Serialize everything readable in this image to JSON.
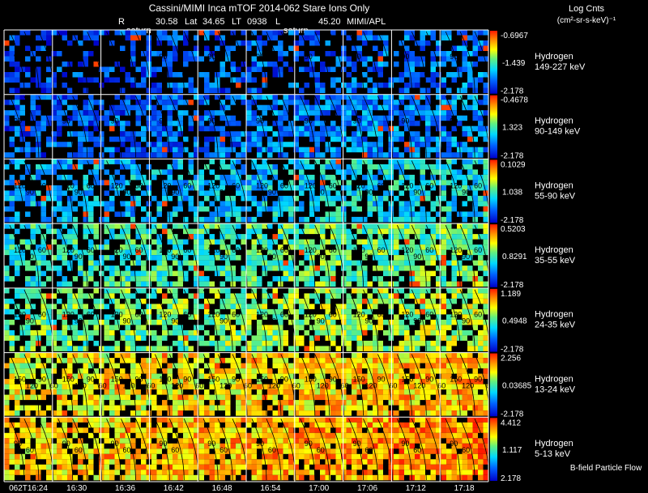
{
  "header": {
    "title": "Cassini/MIMI Inca mTOF  2014-062   Stare   Ions Only",
    "r_label": "R",
    "r_value": "30.58",
    "lat_label": "Lat",
    "lat_value": "34.65",
    "lt_label": "LT",
    "lt_value": "0938",
    "l_label": "L",
    "l_value": "45.20",
    "source": "MIMI/APL",
    "marker_1": "saturn",
    "marker_2": "saturn"
  },
  "colorbar_header": {
    "title": "Log Cnts",
    "units": "(cm²-sr-s-keV)⁻¹"
  },
  "footer": {
    "time_labels": [
      "062T16:24",
      "16:30",
      "16:36",
      "16:42",
      "16:48",
      "16:54",
      "17:00",
      "17:06",
      "17:12",
      "17:18"
    ],
    "legend": "B-field Particle Flow"
  },
  "colors": {
    "background": "#000000",
    "text": "#ffffff",
    "grid": "#ffffff"
  },
  "chart_data": {
    "type": "heatmap",
    "x_axis": "time (UT, 2014-062)",
    "columns": 10,
    "rows": [
      {
        "species": "Hydrogen",
        "energy": "149-227 keV",
        "cb_max": "-0.6967",
        "cb_mid": "-1.439",
        "cb_min": "-2.178",
        "mean_level": 0.18,
        "coverage": 0.45,
        "angle_labels": [
          "90"
        ]
      },
      {
        "species": "Hydrogen",
        "energy": "90-149 keV",
        "cb_max": "-0.4678",
        "cb_mid": "1.323",
        "cb_min": "-2.178",
        "mean_level": 0.22,
        "coverage": 0.68,
        "angle_labels": [
          "90"
        ]
      },
      {
        "species": "Hydrogen",
        "energy": "55-90 keV",
        "cb_max": "0.1029",
        "cb_mid": "1.038",
        "cb_min": "-2.178",
        "mean_level": 0.36,
        "coverage": 0.62,
        "angle_labels": [
          "120",
          "90",
          "60"
        ]
      },
      {
        "species": "Hydrogen",
        "energy": "35-55 keV",
        "cb_max": "0.5203",
        "cb_mid": "0.8291",
        "cb_min": "-2.178",
        "mean_level": 0.5,
        "coverage": 0.72,
        "angle_labels": [
          "120",
          "90",
          "60"
        ]
      },
      {
        "species": "Hydrogen",
        "energy": "24-35 keV",
        "cb_max": "1.189",
        "cb_mid": "0.4948",
        "cb_min": "-2.178",
        "mean_level": 0.58,
        "coverage": 0.7,
        "angle_labels": [
          "120",
          "90",
          "60"
        ]
      },
      {
        "species": "Hydrogen",
        "energy": "13-24 keV",
        "cb_max": "2.256",
        "cb_mid": "0.03685",
        "cb_min": "-2.178",
        "mean_level": 0.74,
        "coverage": 0.82,
        "angle_labels": [
          "150",
          "120",
          "90",
          "60"
        ]
      },
      {
        "species": "Hydrogen",
        "energy": "5-13 keV",
        "cb_max": "4.412",
        "cb_mid": "1.117",
        "cb_min": "2.178",
        "mean_level": 0.8,
        "coverage": 0.86,
        "angle_labels": [
          "90",
          "60"
        ]
      }
    ]
  }
}
